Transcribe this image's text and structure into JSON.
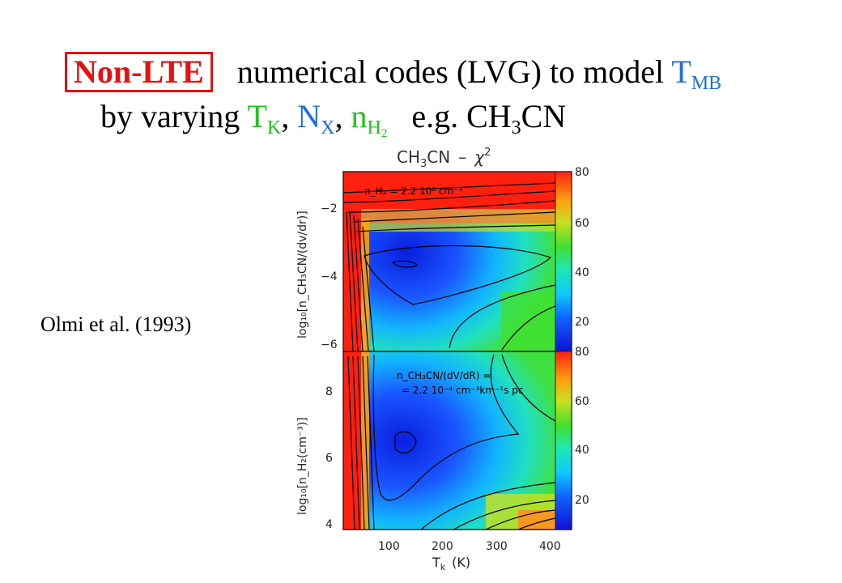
{
  "title": {
    "badge": "Non-LTE",
    "rest": "numerical codes (LVG) to model ",
    "tmb_main": "T",
    "tmb_sub": "MB",
    "line2_a": "by varying ",
    "tk_main": "T",
    "tk_sub": "K",
    "comma1": ", ",
    "nx_main": "N",
    "nx_sub": "X",
    "comma2": ", ",
    "nh_main": "n",
    "nh_sub": "H",
    "nh_subsub": "2",
    "eg": "e.g. CH",
    "eg_sub": "3",
    "eg_end": "CN"
  },
  "citation": "Olmi et al. (1993)",
  "colors": {
    "badge": "#e81010",
    "blue": "#1e6fe0",
    "green": "#22c21a"
  },
  "figure": {
    "title": "CH",
    "title_sub": "3",
    "title_cn": "CN",
    "title_dash": "–",
    "title_chi": "χ",
    "title_exp": "2",
    "xlabel": "T",
    "xlabel_sub": "k",
    "xlabel_unit": "(K)",
    "x_ticks": [
      "100",
      "200",
      "300",
      "400"
    ],
    "top_panel": {
      "ylabel": "log₁₀[n_CH₃CN/(dv/dr)]",
      "y_ticks": [
        "−2",
        "−4",
        "−6"
      ],
      "annotation": "n_H₂ = 2.2 10⁶ cm⁻³",
      "colorbar_ticks": [
        "80",
        "60",
        "40",
        "20"
      ]
    },
    "bottom_panel": {
      "ylabel": "log₁₀[n_H₂(cm⁻³)]",
      "y_ticks": [
        "8",
        "6",
        "4"
      ],
      "annotation_line1": "n_CH₃CN/(dV/dR) =",
      "annotation_line2": "= 2.2 10⁻⁴ cm⁻³km⁻¹s pc",
      "colorbar_ticks": [
        "80",
        "60",
        "40",
        "20"
      ]
    }
  }
}
